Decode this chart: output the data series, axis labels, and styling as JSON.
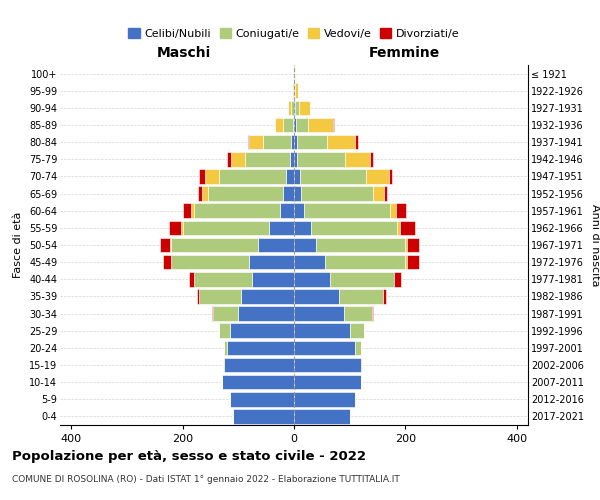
{
  "age_groups": [
    "0-4",
    "5-9",
    "10-14",
    "15-19",
    "20-24",
    "25-29",
    "30-34",
    "35-39",
    "40-44",
    "45-49",
    "50-54",
    "55-59",
    "60-64",
    "65-69",
    "70-74",
    "75-79",
    "80-84",
    "85-89",
    "90-94",
    "95-99",
    "100+"
  ],
  "birth_years": [
    "2017-2021",
    "2012-2016",
    "2007-2011",
    "2002-2006",
    "1997-2001",
    "1992-1996",
    "1987-1991",
    "1982-1986",
    "1977-1981",
    "1972-1976",
    "1967-1971",
    "1962-1966",
    "1957-1961",
    "1952-1956",
    "1947-1951",
    "1942-1946",
    "1937-1941",
    "1932-1936",
    "1927-1931",
    "1922-1926",
    "≤ 1921"
  ],
  "males": {
    "celibi": [
      110,
      115,
      130,
      125,
      120,
      115,
      100,
      95,
      75,
      80,
      65,
      45,
      25,
      20,
      15,
      8,
      5,
      2,
      0,
      0,
      0
    ],
    "coniugati": [
      0,
      0,
      0,
      2,
      5,
      20,
      45,
      75,
      105,
      140,
      155,
      155,
      155,
      135,
      120,
      80,
      50,
      18,
      5,
      2,
      0
    ],
    "vedovi": [
      0,
      0,
      0,
      0,
      0,
      0,
      0,
      0,
      0,
      1,
      2,
      3,
      5,
      10,
      25,
      25,
      25,
      15,
      5,
      2,
      0
    ],
    "divorziati": [
      0,
      0,
      0,
      0,
      0,
      0,
      2,
      5,
      8,
      15,
      18,
      22,
      15,
      8,
      10,
      8,
      2,
      0,
      0,
      0,
      0
    ]
  },
  "females": {
    "nubili": [
      100,
      110,
      120,
      120,
      110,
      100,
      90,
      80,
      65,
      55,
      40,
      30,
      18,
      12,
      10,
      6,
      5,
      3,
      1,
      0,
      0
    ],
    "coniugate": [
      0,
      0,
      0,
      2,
      10,
      25,
      50,
      80,
      115,
      145,
      160,
      155,
      155,
      130,
      120,
      85,
      55,
      22,
      8,
      2,
      0
    ],
    "vedove": [
      0,
      0,
      0,
      0,
      0,
      0,
      0,
      0,
      0,
      2,
      3,
      5,
      10,
      20,
      40,
      45,
      50,
      45,
      20,
      5,
      1
    ],
    "divorziate": [
      0,
      0,
      0,
      0,
      0,
      0,
      2,
      5,
      12,
      22,
      22,
      28,
      18,
      5,
      5,
      5,
      5,
      2,
      0,
      0,
      0
    ]
  },
  "colors": {
    "celibi_nubili": "#4472C4",
    "coniugati": "#AECB7B",
    "vedovi": "#F5C842",
    "divorziati": "#CC0000"
  },
  "xlim": 420,
  "title": "Popolazione per età, sesso e stato civile - 2022",
  "subtitle": "COMUNE DI ROSOLINA (RO) - Dati ISTAT 1° gennaio 2022 - Elaborazione TUTTITALIA.IT",
  "xlabel_left": "Maschi",
  "xlabel_right": "Femmine",
  "ylabel_left": "Fasce di età",
  "ylabel_right": "Anni di nascita"
}
